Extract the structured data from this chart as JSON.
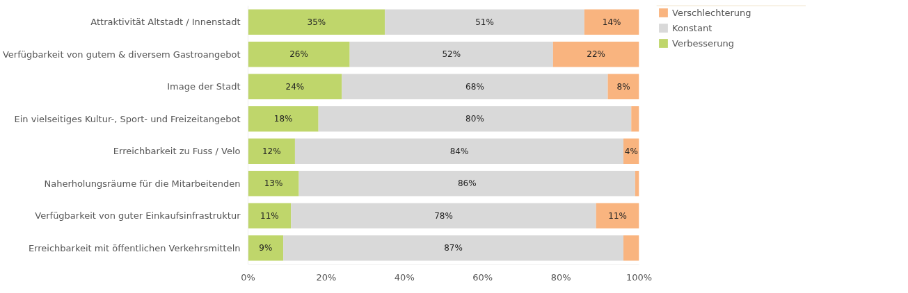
{
  "chart_data": {
    "type": "bar",
    "orientation": "horizontal",
    "stacked": true,
    "categories": [
      "Attraktivität Altstadt / Innenstadt",
      "Verfügbarkeit von gutem & diversem Gastroangebot",
      "Image der Stadt",
      "Ein vielseitiges Kultur-, Sport- und Freizeitangebot",
      "Erreichbarkeit zu Fuss / Velo",
      "Naherholungsräume für die Mitarbeitenden",
      "Verfügbarkeit von guter Einkaufsinfrastruktur",
      "Erreichbarkeit mit öffentlichen Verkehrsmitteln"
    ],
    "series": [
      {
        "name": "Verbesserung",
        "color": "#bfd66b",
        "values": [
          35,
          26,
          24,
          18,
          12,
          13,
          11,
          9
        ],
        "value_labels": [
          "35%",
          "26%",
          "24%",
          "18%",
          "12%",
          "13%",
          "11%",
          "9%"
        ]
      },
      {
        "name": "Konstant",
        "color": "#d9d9d9",
        "values": [
          51,
          52,
          68,
          80,
          84,
          86,
          78,
          87
        ],
        "value_labels": [
          "51%",
          "52%",
          "68%",
          "80%",
          "84%",
          "86%",
          "78%",
          "87%"
        ]
      },
      {
        "name": "Verschlechterung",
        "color": "#f9b47f",
        "values": [
          14,
          22,
          8,
          2,
          4,
          1,
          11,
          4
        ],
        "value_labels": [
          "14%",
          "22%",
          "8%",
          null,
          "4%",
          null,
          "11%",
          null
        ]
      }
    ],
    "xlim": [
      0,
      100
    ],
    "xticks": [
      {
        "value": 0,
        "label": "0%"
      },
      {
        "value": 20,
        "label": "20%"
      },
      {
        "value": 40,
        "label": "40%"
      },
      {
        "value": 60,
        "label": "60%"
      },
      {
        "value": 80,
        "label": "80%"
      },
      {
        "value": 100,
        "label": "100%"
      }
    ],
    "grid": false,
    "legend": "top right"
  }
}
